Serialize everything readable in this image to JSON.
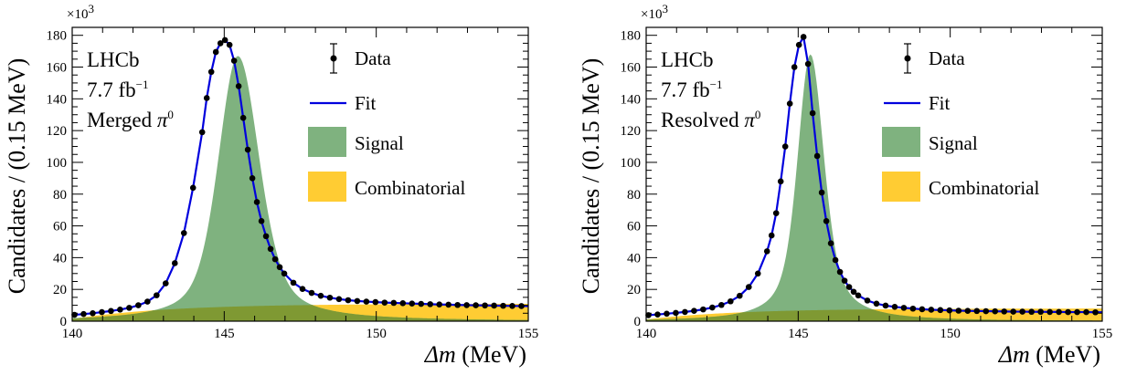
{
  "chart_data": [
    {
      "type": "line",
      "info": {
        "experiment": "LHCb",
        "lumi_base": "7.7 fb",
        "lumi_exp": "−1",
        "category": "Merged",
        "particle": "π",
        "particle_sup": "0"
      },
      "xlabel_symbol": "Δm",
      "xlabel_unit": " (MeV)",
      "ylabel": "Candidates / (0.15 MeV)",
      "y_multiplier_base": "×10",
      "y_multiplier_exp": "3",
      "xlim": [
        140,
        155
      ],
      "ylim": [
        0,
        185
      ],
      "xticks": [
        140,
        145,
        150,
        155
      ],
      "yticks": [
        0,
        20,
        40,
        60,
        80,
        100,
        120,
        140,
        160,
        180
      ],
      "legend": {
        "data": "Data",
        "fit": "Fit",
        "signal": "Signal",
        "combinatorial": "Combinatorial"
      },
      "colors": {
        "fit": "#0000dd",
        "signal": "#7fb27f",
        "combinatorial": "#ffcc33",
        "overlap": "#7f9933",
        "data": "#000000"
      },
      "data_x": [
        140.075,
        140.375,
        140.675,
        140.975,
        141.275,
        141.575,
        141.875,
        142.175,
        142.475,
        142.775,
        143.075,
        143.375,
        143.675,
        143.975,
        144.275,
        144.425,
        144.575,
        144.725,
        144.875,
        145.025,
        145.175,
        145.325,
        145.475,
        145.625,
        145.775,
        145.925,
        146.075,
        146.225,
        146.375,
        146.525,
        146.675,
        146.825,
        146.975,
        147.275,
        147.575,
        147.875,
        148.175,
        148.475,
        148.775,
        149.075,
        149.375,
        149.675,
        149.975,
        150.275,
        150.575,
        150.875,
        151.175,
        151.475,
        151.775,
        152.075,
        152.375,
        152.675,
        152.975,
        153.275,
        153.575,
        153.875,
        154.175,
        154.475,
        154.775
      ],
      "data_y": [
        4.0,
        4.5,
        5.0,
        5.7,
        6.4,
        7.3,
        8.4,
        10.0,
        12.3,
        16.3,
        23.8,
        36.5,
        55.5,
        84.0,
        119.0,
        140.5,
        157.0,
        169.5,
        175.0,
        177.0,
        174.0,
        164.0,
        148.0,
        128.0,
        108.0,
        90.0,
        75.0,
        63.0,
        53.5,
        45.5,
        39.0,
        34.0,
        30.0,
        24.2,
        20.3,
        17.8,
        16.0,
        14.8,
        13.9,
        13.2,
        12.7,
        12.3,
        12.0,
        11.7,
        11.5,
        11.3,
        11.1,
        10.9,
        10.7,
        10.5,
        10.4,
        10.2,
        10.1,
        10.0,
        9.9,
        9.8,
        9.7,
        9.6,
        9.5
      ],
      "signal_peak": {
        "mu": 145.45,
        "height": 167,
        "sigma_left": 0.62,
        "sigma_right": 0.68,
        "tail_a": 0.06,
        "tail_b": 0.05,
        "tail_ratio": 0.45
      },
      "combinatorial": {
        "threshold": 139.57,
        "plateau": 11.0,
        "rise": 3.2
      }
    },
    {
      "type": "line",
      "info": {
        "experiment": "LHCb",
        "lumi_base": "7.7 fb",
        "lumi_exp": "−1",
        "category": "Resolved",
        "particle": "π",
        "particle_sup": "0"
      },
      "xlabel_symbol": "Δm",
      "xlabel_unit": " (MeV)",
      "ylabel": "Candidates / (0.15 MeV)",
      "y_multiplier_base": "×10",
      "y_multiplier_exp": "3",
      "xlim": [
        140,
        155
      ],
      "ylim": [
        0,
        185
      ],
      "xticks": [
        140,
        145,
        150,
        155
      ],
      "yticks": [
        0,
        20,
        40,
        60,
        80,
        100,
        120,
        140,
        160,
        180
      ],
      "legend": {
        "data": "Data",
        "fit": "Fit",
        "signal": "Signal",
        "combinatorial": "Combinatorial"
      },
      "colors": {
        "fit": "#0000dd",
        "signal": "#7fb27f",
        "combinatorial": "#ffcc33",
        "overlap": "#7f9933",
        "data": "#000000"
      },
      "data_x": [
        140.075,
        140.375,
        140.675,
        140.975,
        141.275,
        141.575,
        141.875,
        142.175,
        142.475,
        142.775,
        143.075,
        143.375,
        143.675,
        143.975,
        144.125,
        144.275,
        144.425,
        144.575,
        144.725,
        144.875,
        145.025,
        145.175,
        145.325,
        145.475,
        145.625,
        145.775,
        145.925,
        146.075,
        146.225,
        146.375,
        146.525,
        146.675,
        146.825,
        146.975,
        147.275,
        147.575,
        147.875,
        148.175,
        148.475,
        148.775,
        149.075,
        149.375,
        149.675,
        149.975,
        150.275,
        150.575,
        150.875,
        151.175,
        151.475,
        151.775,
        152.075,
        152.375,
        152.675,
        152.975,
        153.275,
        153.575,
        153.875,
        154.175,
        154.475,
        154.775
      ],
      "data_y": [
        3.8,
        4.2,
        4.7,
        5.2,
        5.8,
        6.5,
        7.4,
        8.6,
        10.2,
        12.5,
        16.0,
        21.5,
        30.0,
        44.0,
        54.0,
        68.0,
        88.0,
        110.0,
        137.0,
        160.0,
        174.0,
        179.0,
        162.0,
        131.0,
        104.0,
        81.0,
        63.0,
        49.0,
        38.5,
        31.0,
        25.5,
        21.5,
        18.5,
        16.2,
        13.0,
        11.0,
        9.8,
        9.0,
        8.4,
        7.9,
        7.5,
        7.2,
        7.0,
        6.8,
        6.6,
        6.5,
        6.4,
        6.3,
        6.2,
        6.1,
        6.0,
        6.0,
        5.9,
        5.9,
        5.8,
        5.8,
        5.7,
        5.7,
        5.7,
        5.6
      ],
      "signal_peak": {
        "mu": 145.4,
        "height": 168,
        "sigma_left": 0.4,
        "sigma_right": 0.43,
        "tail_a": 0.05,
        "tail_b": 0.04,
        "tail_ratio": 0.55
      },
      "combinatorial": {
        "threshold": 139.57,
        "plateau": 8.0,
        "rise": 3.0
      }
    }
  ]
}
